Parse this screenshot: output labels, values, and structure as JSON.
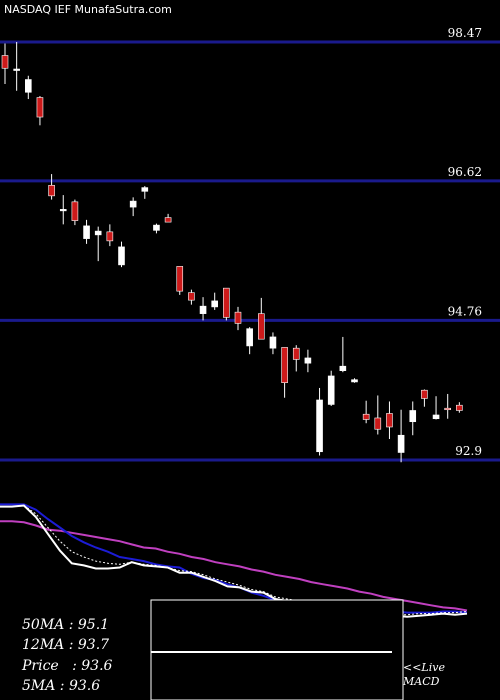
{
  "title": "NASDAQ IEF MunafaSutra.com",
  "chart_data": {
    "type": "candlestick",
    "y_ticks": [
      {
        "value": 98.47,
        "label": "98.47"
      },
      {
        "value": 96.62,
        "label": "96.62"
      },
      {
        "value": 94.76,
        "label": "94.76"
      },
      {
        "value": 92.9,
        "label": "92.9"
      }
    ],
    "ylim": [
      92.9,
      98.47
    ],
    "candles": [
      {
        "o": 98.29,
        "h": 98.45,
        "l": 97.91,
        "c": 98.12,
        "up": false
      },
      {
        "o": 98.09,
        "h": 98.47,
        "l": 97.82,
        "c": 98.11,
        "up": true
      },
      {
        "o": 97.97,
        "h": 98.02,
        "l": 97.71,
        "c": 97.8,
        "up": true
      },
      {
        "o": 97.73,
        "h": 97.75,
        "l": 97.36,
        "c": 97.47,
        "up": false
      },
      {
        "o": 96.56,
        "h": 96.71,
        "l": 96.37,
        "c": 96.42,
        "up": false
      },
      {
        "o": 96.24,
        "h": 96.43,
        "l": 96.04,
        "c": 96.22,
        "up": true
      },
      {
        "o": 96.34,
        "h": 96.37,
        "l": 96.03,
        "c": 96.09,
        "up": false
      },
      {
        "o": 96.02,
        "h": 96.1,
        "l": 95.78,
        "c": 95.85,
        "up": true
      },
      {
        "o": 95.95,
        "h": 96.01,
        "l": 95.55,
        "c": 95.9,
        "up": true
      },
      {
        "o": 95.94,
        "h": 96.04,
        "l": 95.75,
        "c": 95.82,
        "up": false
      },
      {
        "o": 95.74,
        "h": 95.81,
        "l": 95.47,
        "c": 95.5,
        "up": true
      },
      {
        "o": 96.27,
        "h": 96.4,
        "l": 96.15,
        "c": 96.35,
        "up": true
      },
      {
        "o": 96.53,
        "h": 96.55,
        "l": 96.38,
        "c": 96.48,
        "up": true
      },
      {
        "o": 96.03,
        "h": 96.05,
        "l": 95.92,
        "c": 95.96,
        "up": true
      },
      {
        "o": 96.13,
        "h": 96.18,
        "l": 96.1,
        "c": 96.07,
        "up": false
      },
      {
        "o": 95.48,
        "h": 95.48,
        "l": 95.1,
        "c": 95.15,
        "up": false
      },
      {
        "o": 95.13,
        "h": 95.17,
        "l": 94.97,
        "c": 95.03,
        "up": false
      },
      {
        "o": 94.95,
        "h": 95.07,
        "l": 94.76,
        "c": 94.85,
        "up": true
      },
      {
        "o": 95.02,
        "h": 95.13,
        "l": 94.9,
        "c": 94.94,
        "up": true
      },
      {
        "o": 95.19,
        "h": 95.19,
        "l": 94.76,
        "c": 94.8,
        "up": false
      },
      {
        "o": 94.87,
        "h": 94.94,
        "l": 94.63,
        "c": 94.72,
        "up": false
      },
      {
        "o": 94.65,
        "h": 94.67,
        "l": 94.31,
        "c": 94.42,
        "up": true
      },
      {
        "o": 94.85,
        "h": 95.06,
        "l": 94.51,
        "c": 94.51,
        "up": false
      },
      {
        "o": 94.54,
        "h": 94.6,
        "l": 94.31,
        "c": 94.39,
        "up": true
      },
      {
        "o": 94.4,
        "h": 94.4,
        "l": 93.73,
        "c": 93.93,
        "up": false
      },
      {
        "o": 94.39,
        "h": 94.43,
        "l": 94.08,
        "c": 94.24,
        "up": false
      },
      {
        "o": 94.26,
        "h": 94.37,
        "l": 94.07,
        "c": 94.19,
        "up": true
      },
      {
        "o": 93.7,
        "h": 93.86,
        "l": 92.96,
        "c": 93.01,
        "up": true
      },
      {
        "o": 94.02,
        "h": 94.09,
        "l": 93.62,
        "c": 93.64,
        "up": true
      },
      {
        "o": 94.15,
        "h": 94.54,
        "l": 94.07,
        "c": 94.09,
        "up": true
      },
      {
        "o": 93.97,
        "h": 93.99,
        "l": 93.93,
        "c": 93.94,
        "up": true
      },
      {
        "o": 93.51,
        "h": 93.69,
        "l": 93.39,
        "c": 93.44,
        "up": false
      },
      {
        "o": 93.46,
        "h": 93.76,
        "l": 93.24,
        "c": 93.31,
        "up": false
      },
      {
        "o": 93.52,
        "h": 93.68,
        "l": 93.18,
        "c": 93.34,
        "up": false
      },
      {
        "o": 93.23,
        "h": 93.57,
        "l": 92.87,
        "c": 93.0,
        "up": true
      },
      {
        "o": 93.56,
        "h": 93.68,
        "l": 93.23,
        "c": 93.41,
        "up": true
      },
      {
        "o": 93.72,
        "h": 93.84,
        "l": 93.61,
        "c": 93.83,
        "up": false
      },
      {
        "o": 93.5,
        "h": 93.75,
        "l": 93.44,
        "c": 93.45,
        "up": true
      },
      {
        "o": 93.59,
        "h": 93.78,
        "l": 93.45,
        "c": 93.57,
        "up": false
      },
      {
        "o": 93.56,
        "h": 93.67,
        "l": 93.53,
        "c": 93.63,
        "up": false
      }
    ],
    "ma_lines": {
      "ma_white": [
        1.1,
        1.1,
        1.0,
        2.1,
        3.7,
        5.3,
        6.5,
        6.7,
        7.0,
        7.0,
        6.9,
        6.4,
        6.7,
        6.8,
        6.9,
        7.4,
        7.4,
        7.8,
        8.2,
        8.7,
        8.8,
        9.2,
        9.3,
        9.9,
        10.1,
        10.4,
        10.3,
        10.8,
        11.2,
        11.1,
        11.0,
        11.2,
        11.2,
        11.5,
        11.6,
        11.5,
        11.4,
        11.3,
        11.4,
        11.3
      ],
      "ma_blue": [
        0.9,
        0.9,
        0.9,
        1.4,
        2.3,
        3.1,
        3.9,
        4.5,
        5.0,
        5.4,
        5.9,
        6.1,
        6.3,
        6.6,
        6.8,
        6.9,
        7.5,
        7.9,
        8.1,
        8.5,
        8.8,
        9.3,
        9.6,
        10.0,
        10.2,
        10.3,
        10.4,
        10.5,
        10.5,
        10.6,
        10.6,
        10.8,
        11.0,
        11.1,
        11.2,
        11.2,
        11.2,
        11.1,
        11.1,
        11.2
      ],
      "ma_magenta": [
        2.5,
        2.5,
        2.6,
        2.9,
        3.3,
        3.4,
        3.6,
        3.8,
        4.0,
        4.2,
        4.4,
        4.7,
        5.0,
        5.1,
        5.4,
        5.6,
        5.9,
        6.1,
        6.4,
        6.6,
        6.8,
        7.1,
        7.3,
        7.6,
        7.8,
        8.0,
        8.3,
        8.5,
        8.7,
        8.9,
        9.2,
        9.4,
        9.7,
        9.9,
        10.1,
        10.3,
        10.5,
        10.7,
        10.8,
        11.0
      ],
      "ma_dotted": [
        1.1,
        1.1,
        1.0,
        1.8,
        3.1,
        4.4,
        5.4,
        5.9,
        6.3,
        6.5,
        6.6,
        6.4,
        6.6,
        6.7,
        6.9,
        7.2,
        7.3,
        7.6,
        8.0,
        8.3,
        8.6,
        9.0,
        9.2,
        9.7,
        9.9,
        10.1,
        10.2,
        10.6,
        10.9,
        11.0,
        11.0,
        11.1,
        11.2,
        11.4,
        11.4,
        11.3,
        11.3,
        11.2,
        11.2,
        11.1
      ]
    },
    "ma_colors": {
      "ma_white": "#ffffff",
      "ma_blue": "#1c1cd6",
      "ma_magenta": "#c040c0",
      "ma_dotted": "#ffffff"
    },
    "candle_colors": {
      "up": "#ffffff",
      "down": "#cc1a1a"
    },
    "gridline_color": "#1a1a8c"
  },
  "ma_panel": {
    "ma50": {
      "label": "50MA",
      "value": "95.1"
    },
    "ma12": {
      "label": "12MA",
      "value": "93.7"
    },
    "price": {
      "label": "Price",
      "value": "93.6"
    },
    "ma5": {
      "label": "5MA",
      "value": "93.6"
    }
  },
  "macd_label": {
    "line1": "<<Live",
    "line2": "MACD"
  }
}
